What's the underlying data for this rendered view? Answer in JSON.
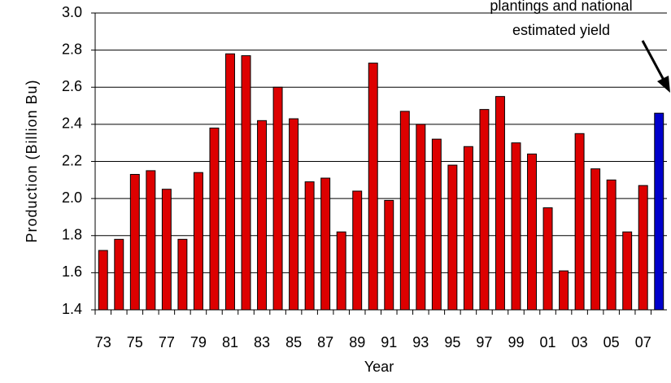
{
  "chart_data": {
    "type": "bar",
    "annotation": [
      "plantings and national",
      "estimated yield"
    ],
    "x_label": "Year",
    "y_label": "Production (Billion Bu)",
    "categories": [
      "73",
      null,
      "75",
      null,
      "77",
      null,
      "79",
      null,
      "81",
      null,
      "83",
      null,
      "85",
      null,
      "87",
      null,
      "89",
      null,
      "91",
      null,
      "93",
      null,
      "95",
      null,
      "97",
      null,
      "99",
      null,
      "01",
      null,
      "03",
      null,
      "05",
      null,
      "07",
      null
    ],
    "values": [
      1.72,
      1.78,
      2.13,
      2.15,
      2.05,
      1.78,
      2.14,
      2.38,
      2.78,
      2.77,
      2.42,
      2.6,
      2.43,
      2.09,
      2.11,
      1.82,
      2.04,
      2.73,
      1.99,
      2.47,
      2.4,
      2.32,
      2.18,
      2.28,
      2.48,
      2.55,
      2.3,
      2.24,
      1.95,
      1.61,
      2.35,
      2.16,
      2.1,
      1.82,
      2.07,
      2.46
    ],
    "colors": [
      "#dd0000",
      "#dd0000",
      "#dd0000",
      "#dd0000",
      "#dd0000",
      "#dd0000",
      "#dd0000",
      "#dd0000",
      "#dd0000",
      "#dd0000",
      "#dd0000",
      "#dd0000",
      "#dd0000",
      "#dd0000",
      "#dd0000",
      "#dd0000",
      "#dd0000",
      "#dd0000",
      "#dd0000",
      "#dd0000",
      "#dd0000",
      "#dd0000",
      "#dd0000",
      "#dd0000",
      "#dd0000",
      "#dd0000",
      "#dd0000",
      "#dd0000",
      "#dd0000",
      "#dd0000",
      "#dd0000",
      "#dd0000",
      "#dd0000",
      "#dd0000",
      "#dd0000",
      "#0000cc"
    ],
    "ylim": [
      1.4,
      3.0
    ],
    "yticks": [
      {
        "value": 1.4,
        "label": "1.4"
      },
      {
        "value": 1.6,
        "label": "1.6"
      },
      {
        "value": 1.8,
        "label": "1.8"
      },
      {
        "value": 2.0,
        "label": "2.0"
      },
      {
        "value": 2.2,
        "label": "2.2"
      },
      {
        "value": 2.4,
        "label": "2.4"
      },
      {
        "value": 2.6,
        "label": "2.6"
      },
      {
        "value": 2.8,
        "label": "2.8"
      },
      {
        "value": 3.0,
        "label": "3.0"
      }
    ],
    "grid": true
  }
}
